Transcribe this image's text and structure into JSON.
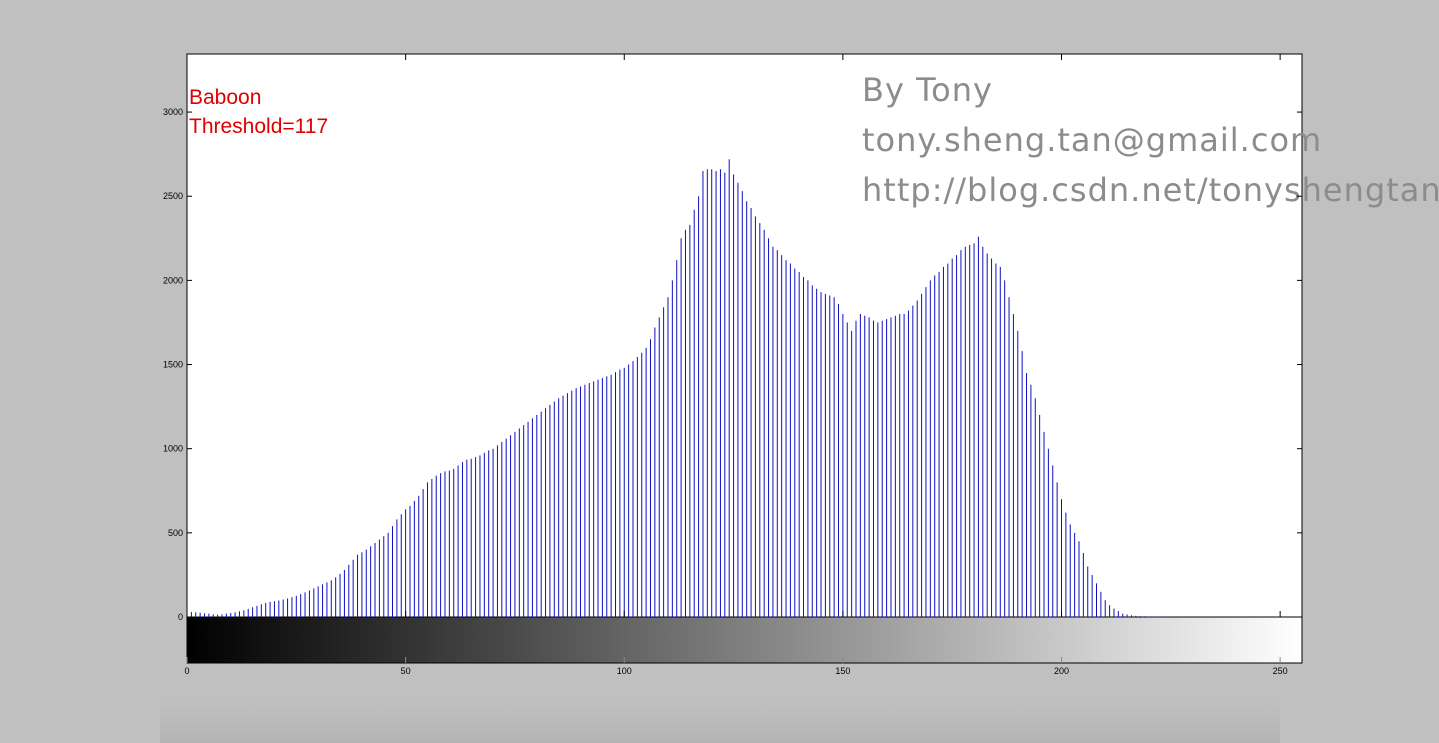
{
  "chart_data": {
    "type": "stem",
    "color": "#1010c0",
    "annotation_color": "#e00000",
    "annotations": [
      "Baboon",
      "Threshold=117"
    ],
    "watermark": [
      "By Tony",
      "tony.sheng.tan@gmail.com",
      "http://blog.csdn.net/tonyshengtan"
    ],
    "xlim": [
      0,
      255
    ],
    "xticks": [
      0,
      50,
      100,
      150,
      200,
      250
    ],
    "ylim": [
      0,
      3345
    ],
    "yticks": [
      0,
      500,
      1000,
      1500,
      2000,
      2500,
      3000
    ],
    "x": [
      0,
      1,
      2,
      3,
      4,
      5,
      6,
      7,
      8,
      9,
      10,
      11,
      12,
      13,
      14,
      15,
      16,
      17,
      18,
      19,
      20,
      21,
      22,
      23,
      24,
      25,
      26,
      27,
      28,
      29,
      30,
      31,
      32,
      33,
      34,
      35,
      36,
      37,
      38,
      39,
      40,
      41,
      42,
      43,
      44,
      45,
      46,
      47,
      48,
      49,
      50,
      51,
      52,
      53,
      54,
      55,
      56,
      57,
      58,
      59,
      60,
      61,
      62,
      63,
      64,
      65,
      66,
      67,
      68,
      69,
      70,
      71,
      72,
      73,
      74,
      75,
      76,
      77,
      78,
      79,
      80,
      81,
      82,
      83,
      84,
      85,
      86,
      87,
      88,
      89,
      90,
      91,
      92,
      93,
      94,
      95,
      96,
      97,
      98,
      99,
      100,
      101,
      102,
      103,
      104,
      105,
      106,
      107,
      108,
      109,
      110,
      111,
      112,
      113,
      114,
      115,
      116,
      117,
      118,
      119,
      120,
      121,
      122,
      123,
      124,
      125,
      126,
      127,
      128,
      129,
      130,
      131,
      132,
      133,
      134,
      135,
      136,
      137,
      138,
      139,
      140,
      141,
      142,
      143,
      144,
      145,
      146,
      147,
      148,
      149,
      150,
      151,
      152,
      153,
      154,
      155,
      156,
      157,
      158,
      159,
      160,
      161,
      162,
      163,
      164,
      165,
      166,
      167,
      168,
      169,
      170,
      171,
      172,
      173,
      174,
      175,
      176,
      177,
      178,
      179,
      180,
      181,
      182,
      183,
      184,
      185,
      186,
      187,
      188,
      189,
      190,
      191,
      192,
      193,
      194,
      195,
      196,
      197,
      198,
      199,
      200,
      201,
      202,
      203,
      204,
      205,
      206,
      207,
      208,
      209,
      210,
      211,
      212,
      213,
      214,
      215,
      216,
      217,
      218,
      219,
      220,
      221,
      222,
      223,
      224,
      225,
      226,
      227,
      228,
      229,
      230,
      231,
      232,
      233,
      234,
      235,
      236,
      237,
      238,
      239,
      240,
      241,
      242,
      243,
      244,
      245,
      246,
      247,
      248,
      249,
      250,
      251,
      252,
      253,
      254,
      255
    ],
    "values": [
      30,
      30,
      28,
      26,
      22,
      20,
      16,
      14,
      16,
      20,
      24,
      28,
      34,
      40,
      48,
      58,
      66,
      76,
      84,
      90,
      94,
      98,
      104,
      110,
      118,
      126,
      136,
      146,
      158,
      170,
      182,
      194,
      206,
      218,
      236,
      256,
      280,
      310,
      340,
      370,
      384,
      400,
      420,
      440,
      460,
      480,
      500,
      540,
      580,
      610,
      640,
      660,
      690,
      720,
      760,
      800,
      820,
      840,
      855,
      865,
      870,
      880,
      900,
      920,
      935,
      940,
      950,
      960,
      975,
      990,
      1000,
      1020,
      1040,
      1060,
      1080,
      1100,
      1120,
      1140,
      1160,
      1180,
      1200,
      1220,
      1240,
      1260,
      1280,
      1300,
      1315,
      1330,
      1345,
      1360,
      1370,
      1380,
      1390,
      1400,
      1410,
      1420,
      1430,
      1440,
      1455,
      1470,
      1480,
      1500,
      1520,
      1545,
      1570,
      1600,
      1650,
      1720,
      1780,
      1840,
      1900,
      2000,
      2120,
      2250,
      2300,
      2330,
      2420,
      2500,
      2650,
      2660,
      2660,
      2650,
      2660,
      2640,
      2720,
      2630,
      2580,
      2530,
      2470,
      2430,
      2380,
      2340,
      2300,
      2250,
      2200,
      2180,
      2150,
      2120,
      2100,
      2070,
      2050,
      2020,
      2000,
      1970,
      1950,
      1930,
      1920,
      1910,
      1900,
      1860,
      1800,
      1750,
      1700,
      1760,
      1800,
      1790,
      1780,
      1760,
      1750,
      1760,
      1770,
      1780,
      1790,
      1800,
      1800,
      1820,
      1850,
      1880,
      1920,
      1960,
      2000,
      2030,
      2050,
      2080,
      2100,
      2130,
      2150,
      2180,
      2200,
      2210,
      2220,
      2260,
      2200,
      2160,
      2130,
      2100,
      2080,
      2000,
      1900,
      1800,
      1700,
      1580,
      1450,
      1380,
      1300,
      1200,
      1100,
      1000,
      900,
      800,
      700,
      620,
      550,
      500,
      450,
      380,
      300,
      250,
      200,
      150,
      100,
      70,
      50,
      35,
      20,
      15,
      10,
      7,
      5,
      4,
      3,
      3,
      2,
      2,
      2,
      1,
      1,
      1,
      1,
      1,
      1,
      1,
      1,
      0,
      0,
      0,
      0,
      0,
      0,
      0,
      0,
      0,
      0,
      0,
      0,
      0,
      0,
      0,
      0,
      0,
      0,
      0,
      0,
      0,
      0,
      0
    ]
  }
}
